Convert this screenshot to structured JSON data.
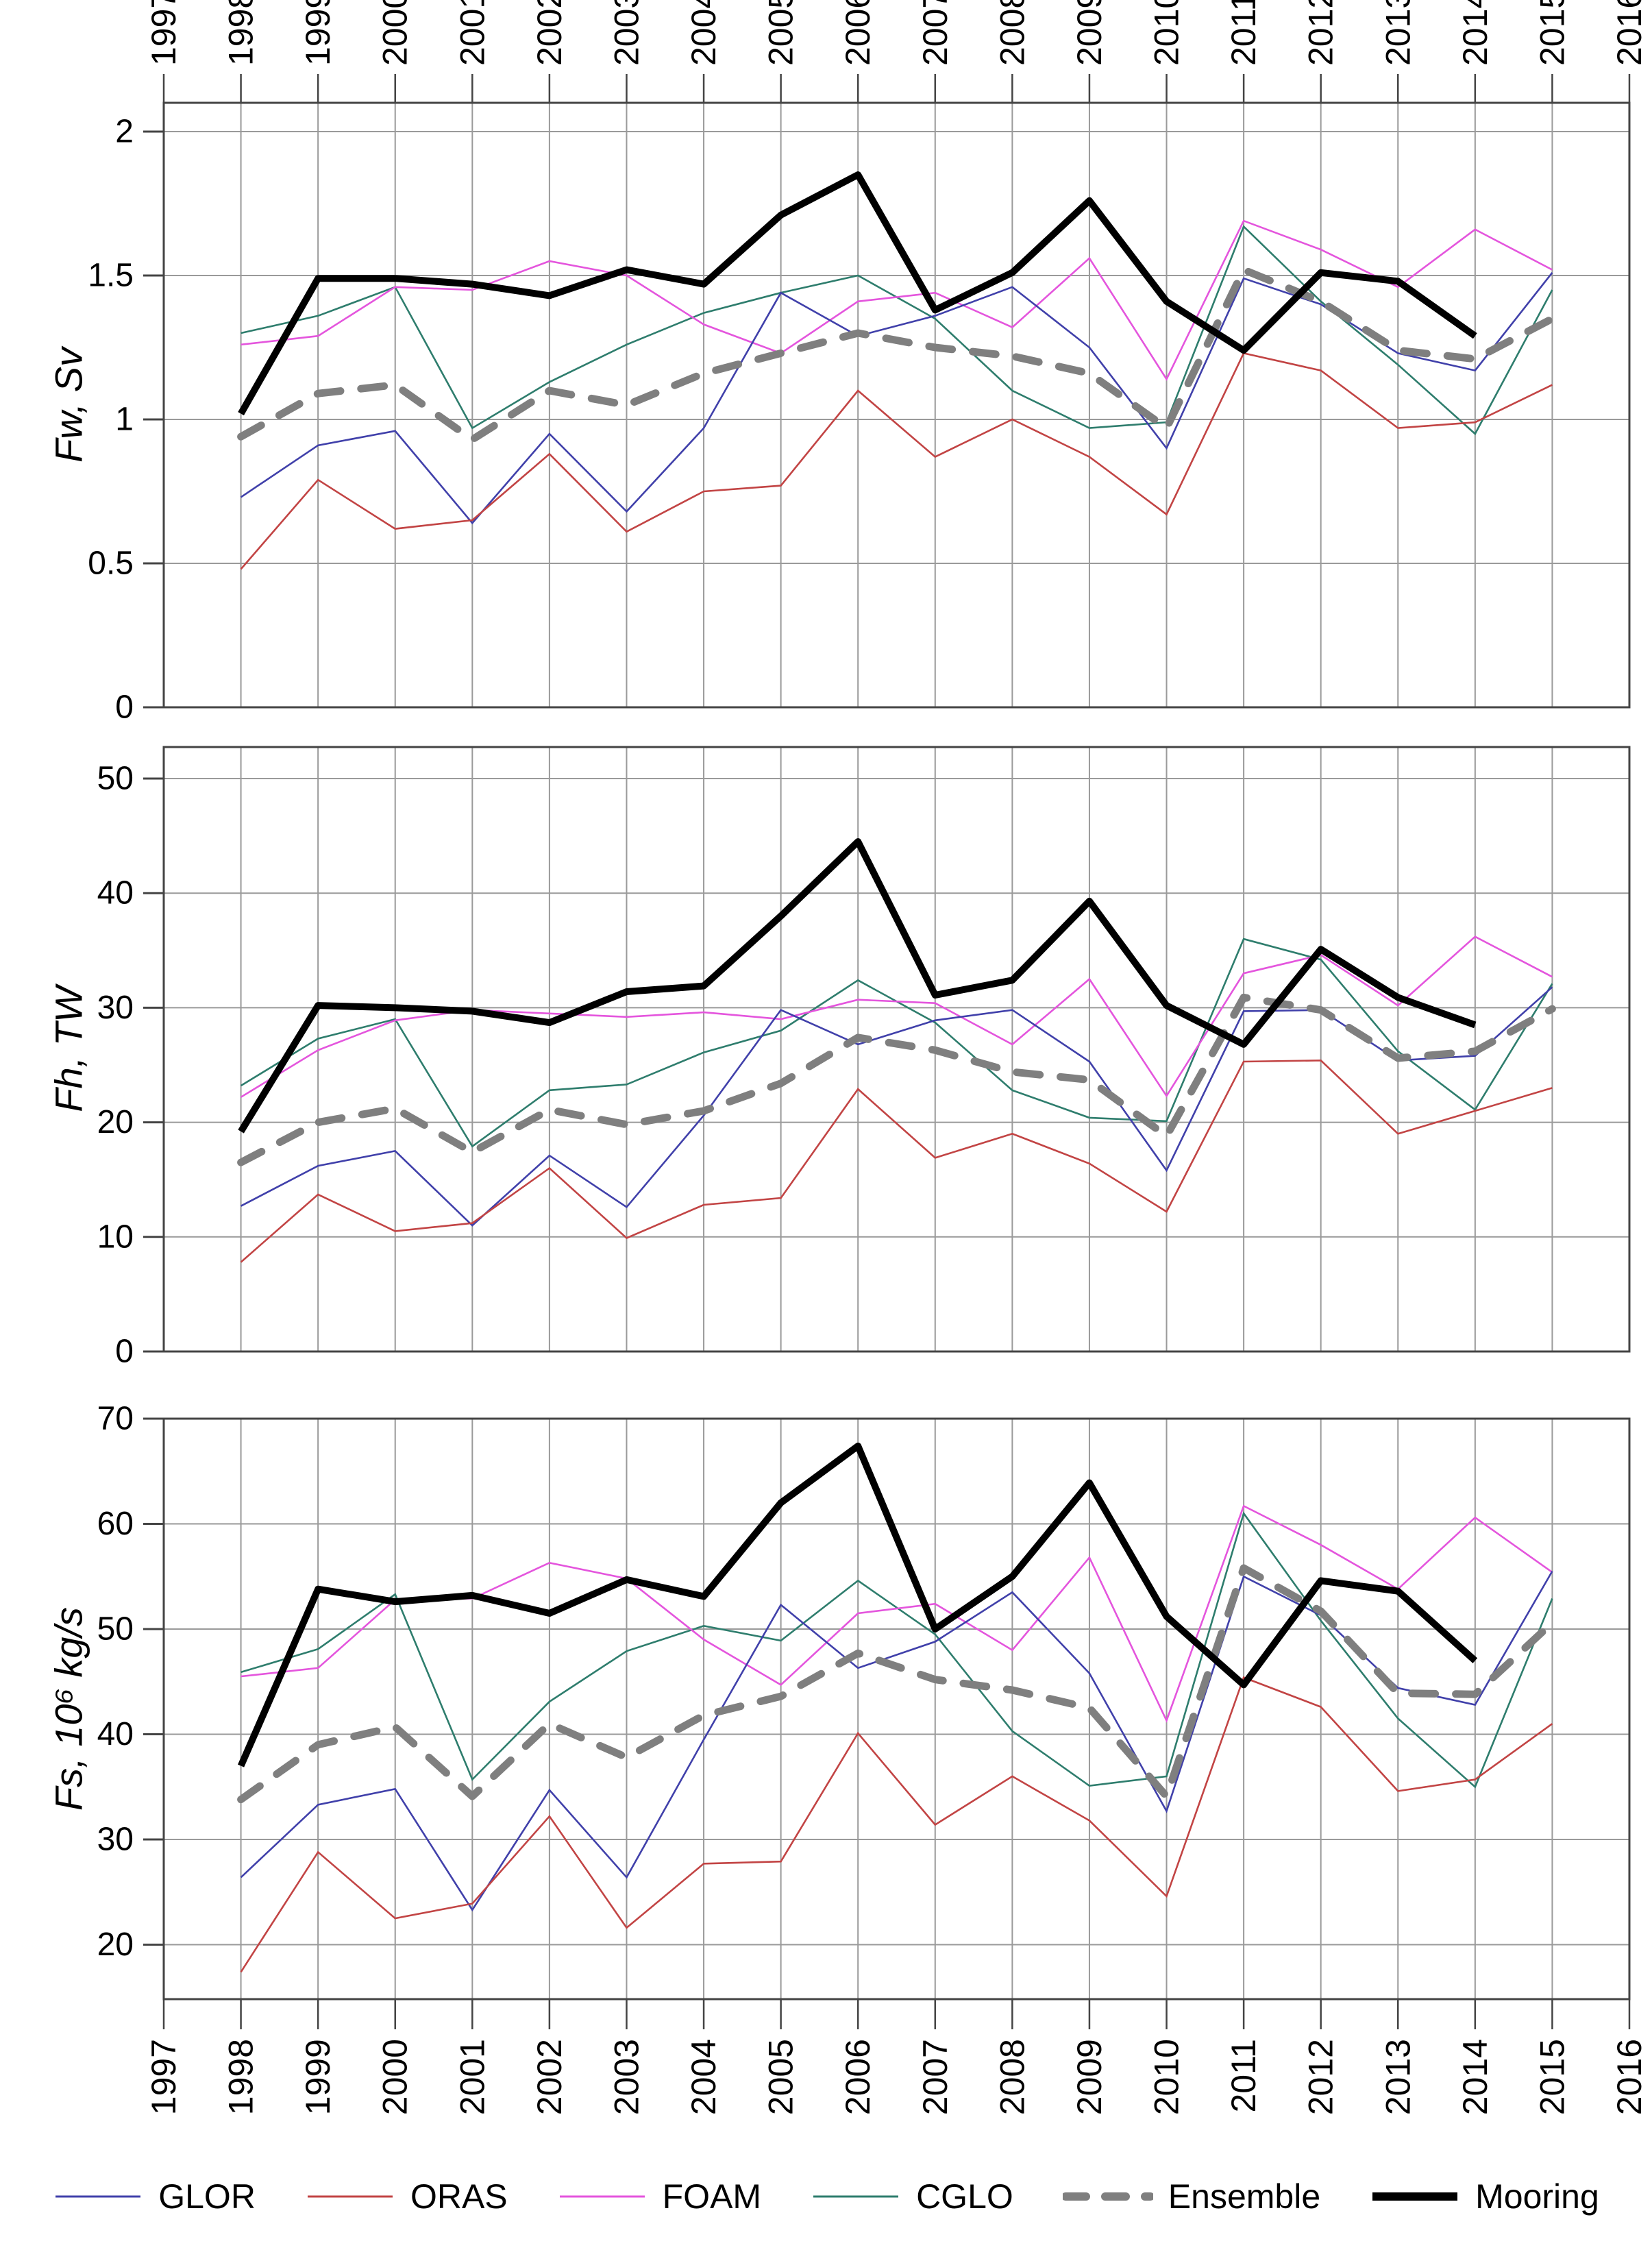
{
  "chart_data": {
    "type": "line",
    "title": "",
    "x": [
      1998,
      1999,
      2000,
      2001,
      2002,
      2003,
      2004,
      2005,
      2006,
      2007,
      2008,
      2009,
      2010,
      2011,
      2012,
      2013,
      2014,
      2015
    ],
    "x_axis": {
      "range": [
        1997,
        2016
      ],
      "tick_years": [
        "1997",
        "1998",
        "1999",
        "2000",
        "2001",
        "2002",
        "2003",
        "2004",
        "2005",
        "2006",
        "2007",
        "2008",
        "2009",
        "2010",
        "2011",
        "2012",
        "2013",
        "2014",
        "2015",
        "2016"
      ],
      "top_labels": true,
      "bottom_labels": true
    },
    "grid": true,
    "legend_position": "bottom",
    "panels": [
      {
        "id": "fw",
        "ylabel": "Fw, Sv",
        "ylim": [
          0,
          2.1
        ],
        "yticks": [
          0,
          0.5,
          1,
          1.5,
          2
        ],
        "ytick_labels": [
          "0",
          "0.5",
          "1",
          "1.5",
          "2"
        ],
        "series": [
          {
            "name": "GLOR",
            "values": [
              0.73,
              0.91,
              0.96,
              0.64,
              0.95,
              0.68,
              0.97,
              1.44,
              1.29,
              1.36,
              1.46,
              1.25,
              0.9,
              1.49,
              1.4,
              1.23,
              1.17,
              1.51
            ]
          },
          {
            "name": "ORAS",
            "values": [
              0.48,
              0.79,
              0.62,
              0.65,
              0.88,
              0.61,
              0.75,
              0.77,
              1.1,
              0.87,
              1.0,
              0.87,
              0.67,
              1.23,
              1.17,
              0.97,
              0.99,
              1.12
            ]
          },
          {
            "name": "FOAM",
            "values": [
              1.26,
              1.29,
              1.46,
              1.45,
              1.55,
              1.5,
              1.33,
              1.23,
              1.41,
              1.44,
              1.32,
              1.56,
              1.14,
              1.69,
              1.59,
              1.46,
              1.66,
              1.52
            ]
          },
          {
            "name": "CGLO",
            "values": [
              1.3,
              1.36,
              1.46,
              0.97,
              1.13,
              1.26,
              1.37,
              1.44,
              1.5,
              1.35,
              1.1,
              0.97,
              0.99,
              1.67,
              1.41,
              1.19,
              0.95,
              1.45
            ]
          },
          {
            "name": "Ensemble",
            "values": [
              0.94,
              1.09,
              1.12,
              0.93,
              1.1,
              1.05,
              1.16,
              1.23,
              1.3,
              1.25,
              1.22,
              1.16,
              0.97,
              1.52,
              1.41,
              1.24,
              1.21,
              1.35
            ]
          },
          {
            "name": "Mooring",
            "values": [
              1.02,
              1.49,
              1.49,
              1.47,
              1.43,
              1.52,
              1.47,
              1.71,
              1.85,
              1.38,
              1.51,
              1.76,
              1.41,
              1.24,
              1.51,
              1.48,
              1.29,
              null
            ]
          }
        ]
      },
      {
        "id": "fh",
        "ylabel": "Fh, TW",
        "ylim": [
          0,
          52.7
        ],
        "yticks": [
          0,
          10,
          20,
          30,
          40,
          50
        ],
        "ytick_labels": [
          "0",
          "10",
          "20",
          "30",
          "40",
          "50"
        ],
        "series": [
          {
            "name": "GLOR",
            "values": [
              12.7,
              16.2,
              17.5,
              11.0,
              17.1,
              12.6,
              20.6,
              29.8,
              26.8,
              28.9,
              29.8,
              25.3,
              15.8,
              29.7,
              29.8,
              25.4,
              25.8,
              31.8
            ]
          },
          {
            "name": "ORAS",
            "values": [
              7.8,
              13.7,
              10.5,
              11.2,
              16.0,
              9.9,
              12.8,
              13.4,
              22.9,
              16.9,
              19.0,
              16.4,
              12.2,
              25.3,
              25.4,
              19.0,
              21.0,
              23.0
            ]
          },
          {
            "name": "FOAM",
            "values": [
              22.2,
              26.3,
              28.9,
              29.8,
              29.5,
              29.2,
              29.6,
              29.0,
              30.7,
              30.4,
              26.8,
              32.5,
              22.3,
              33.0,
              34.6,
              30.2,
              36.2,
              32.7
            ]
          },
          {
            "name": "CGLO",
            "values": [
              23.2,
              27.3,
              29.0,
              17.9,
              22.8,
              23.3,
              26.1,
              28.0,
              32.4,
              28.7,
              22.8,
              20.4,
              20.1,
              36.0,
              34.2,
              26.2,
              21.1,
              32.1
            ]
          },
          {
            "name": "Ensemble",
            "values": [
              16.5,
              20.0,
              21.2,
              17.4,
              21.1,
              19.8,
              21.0,
              23.4,
              27.4,
              26.3,
              24.4,
              23.7,
              18.8,
              30.9,
              29.8,
              25.6,
              26.2,
              29.9
            ]
          },
          {
            "name": "Mooring",
            "values": [
              19.2,
              30.2,
              30.0,
              29.7,
              28.7,
              31.4,
              31.9,
              38.0,
              44.5,
              31.1,
              32.4,
              39.3,
              30.2,
              26.8,
              35.1,
              30.9,
              28.5,
              null
            ]
          }
        ]
      },
      {
        "id": "fs",
        "ylabel": "Fs, 10⁶ kg/s",
        "ylim": [
          14.8,
          70
        ],
        "yticks": [
          20,
          30,
          40,
          50,
          60,
          70
        ],
        "ytick_labels": [
          "20",
          "30",
          "40",
          "50",
          "60",
          "70"
        ],
        "series": [
          {
            "name": "GLOR",
            "values": [
              26.4,
              33.3,
              34.8,
              23.3,
              34.7,
              26.4,
              39.5,
              52.3,
              46.3,
              48.8,
              53.5,
              45.8,
              32.7,
              55.0,
              51.3,
              44.4,
              42.8,
              55.5
            ]
          },
          {
            "name": "ORAS",
            "values": [
              17.4,
              28.8,
              22.5,
              23.9,
              32.2,
              21.6,
              27.7,
              27.9,
              40.1,
              31.4,
              36.0,
              31.8,
              24.6,
              45.4,
              42.6,
              34.6,
              35.7,
              41.0
            ]
          },
          {
            "name": "FOAM",
            "values": [
              45.5,
              46.3,
              52.8,
              52.9,
              56.3,
              54.8,
              49.0,
              44.7,
              51.5,
              52.4,
              48.0,
              56.8,
              41.3,
              61.7,
              58.0,
              53.8,
              60.6,
              55.4
            ]
          },
          {
            "name": "CGLO",
            "values": [
              45.9,
              48.1,
              53.3,
              35.7,
              43.1,
              47.9,
              50.3,
              48.9,
              54.6,
              49.5,
              40.3,
              35.1,
              36.0,
              61.0,
              50.8,
              41.5,
              35.0,
              52.9
            ]
          },
          {
            "name": "Ensemble",
            "values": [
              33.8,
              39.0,
              40.7,
              34.1,
              41.0,
              37.8,
              41.8,
              43.6,
              47.7,
              45.2,
              44.2,
              42.5,
              34.1,
              55.8,
              51.7,
              43.9,
              43.8,
              50.6
            ]
          },
          {
            "name": "Mooring",
            "values": [
              37.0,
              53.8,
              52.6,
              53.2,
              51.5,
              54.7,
              53.1,
              62.0,
              67.4,
              50.0,
              55.0,
              63.9,
              51.2,
              44.7,
              54.6,
              53.6,
              47.0,
              null
            ]
          }
        ]
      }
    ],
    "legend": [
      {
        "name": "GLOR",
        "color": "#4040aa",
        "style": "thin"
      },
      {
        "name": "ORAS",
        "color": "#c24444",
        "style": "thin"
      },
      {
        "name": "FOAM",
        "color": "#e455dd",
        "style": "thin"
      },
      {
        "name": "CGLO",
        "color": "#2e7d6d",
        "style": "thin"
      },
      {
        "name": "Ensemble",
        "color": "#7f7f7f",
        "style": "dashed-thick"
      },
      {
        "name": "Mooring",
        "color": "#000000",
        "style": "solid-thick"
      }
    ]
  }
}
